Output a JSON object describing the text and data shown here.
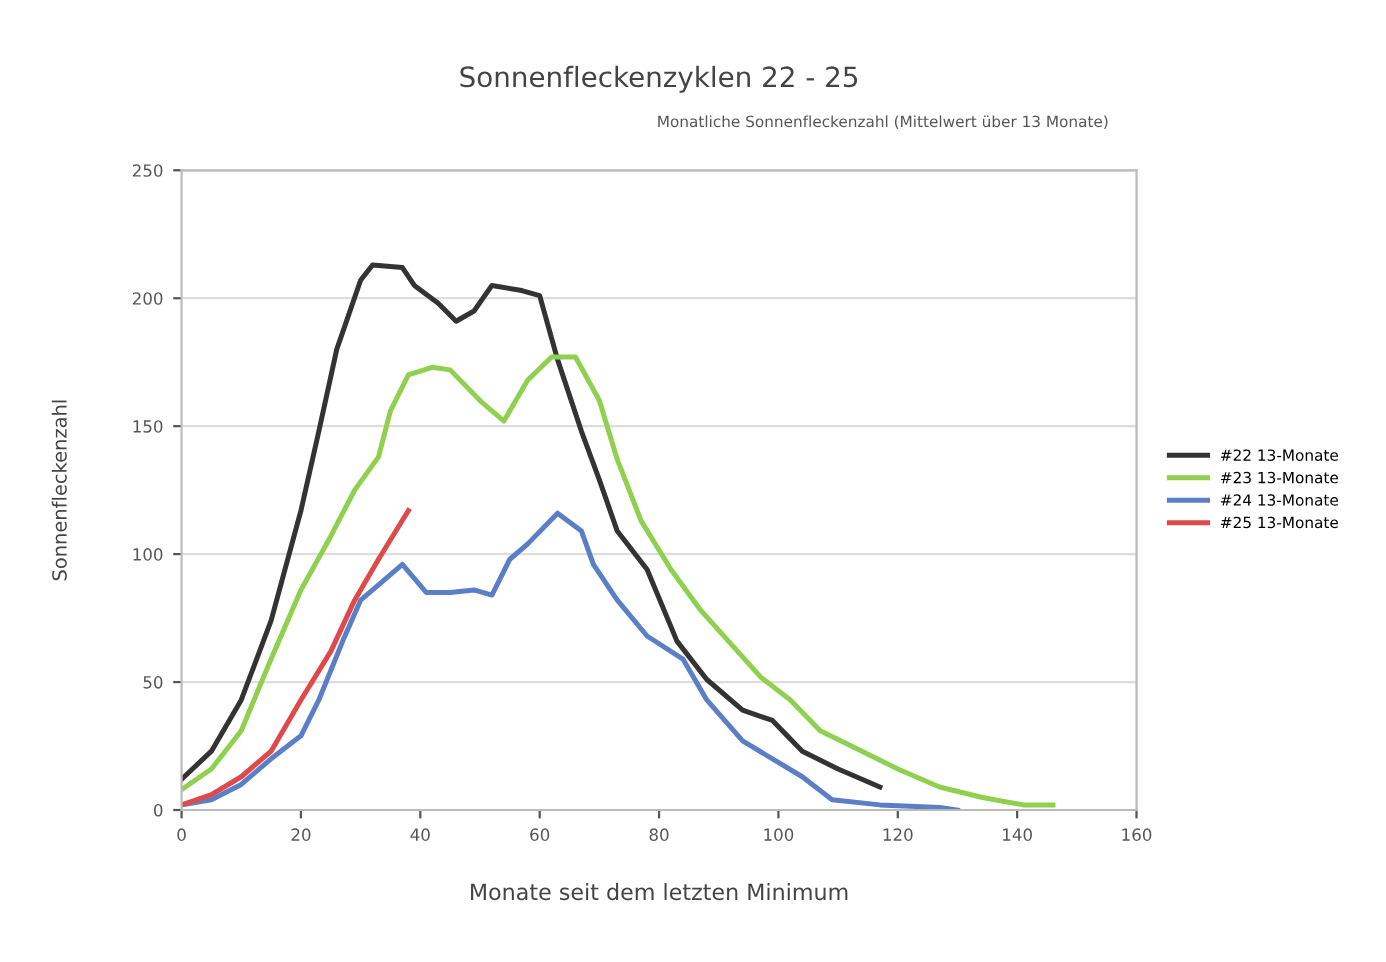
{
  "chart_data": {
    "type": "line",
    "title": "Sonnenfleckenzyklen 22 - 25",
    "subtitle": "Monatliche Sonnenfleckenzahl (Mittelwert über 13 Monate)",
    "xlabel": "Monate seit dem letzten Minimum",
    "ylabel": "Sonnenfleckenzahl",
    "xlim": [
      0,
      160
    ],
    "xticks": [
      0,
      20,
      40,
      60,
      80,
      100,
      120,
      140,
      160
    ],
    "ylim": [
      0,
      250
    ],
    "yticks": [
      0,
      50,
      100,
      150,
      200,
      250
    ],
    "grid": "y",
    "legend": "right",
    "marker": "none",
    "line_style": "solid",
    "series": [
      {
        "name": "#22 13-Monate",
        "color": "#333333",
        "x": [
          0,
          5,
          10,
          15,
          20,
          23,
          26,
          30,
          32,
          37,
          39,
          43,
          46,
          49,
          52,
          57,
          60,
          63,
          67,
          70,
          73,
          78,
          83,
          88,
          94,
          99,
          104,
          110,
          117
        ],
        "values": [
          12,
          23,
          43,
          74,
          117,
          148,
          180,
          207,
          213,
          212,
          205,
          198,
          191,
          195,
          205,
          203,
          201,
          176,
          148,
          129,
          109,
          94,
          66,
          51,
          39,
          35,
          23,
          16,
          9
        ]
      },
      {
        "name": "#23 13-Monate",
        "color": "#8fd14f",
        "x": [
          0,
          5,
          10,
          15,
          20,
          25,
          29,
          33,
          35,
          38,
          42,
          45,
          50,
          54,
          58,
          62,
          66,
          70,
          73,
          77,
          82,
          87,
          92,
          97,
          102,
          107,
          114,
          120,
          127,
          134,
          141,
          146
        ],
        "values": [
          8,
          16,
          31,
          59,
          86,
          107,
          125,
          138,
          156,
          170,
          173,
          172,
          160,
          152,
          168,
          177,
          177,
          160,
          137,
          113,
          94,
          78,
          65,
          52,
          43,
          31,
          23,
          16,
          9,
          5,
          2,
          2
        ]
      },
      {
        "name": "#24 13-Monate",
        "color": "#5b7fc7",
        "x": [
          0,
          5,
          10,
          15,
          20,
          23,
          27,
          30,
          33,
          37,
          41,
          45,
          49,
          52,
          55,
          58,
          63,
          67,
          69,
          73,
          78,
          84,
          88,
          94,
          99,
          104,
          109,
          117,
          127,
          130
        ],
        "values": [
          2,
          4,
          10,
          20,
          29,
          43,
          66,
          82,
          88,
          96,
          85,
          85,
          86,
          84,
          98,
          104,
          116,
          109,
          96,
          82,
          68,
          59,
          43,
          27,
          20,
          13,
          4,
          2,
          1,
          0
        ]
      },
      {
        "name": "#25 13-Monate",
        "color": "#e0494c",
        "x": [
          0,
          5,
          10,
          15,
          20,
          25,
          29,
          33,
          38
        ],
        "values": [
          2,
          6,
          13,
          23,
          43,
          62,
          82,
          98,
          117
        ]
      }
    ]
  }
}
